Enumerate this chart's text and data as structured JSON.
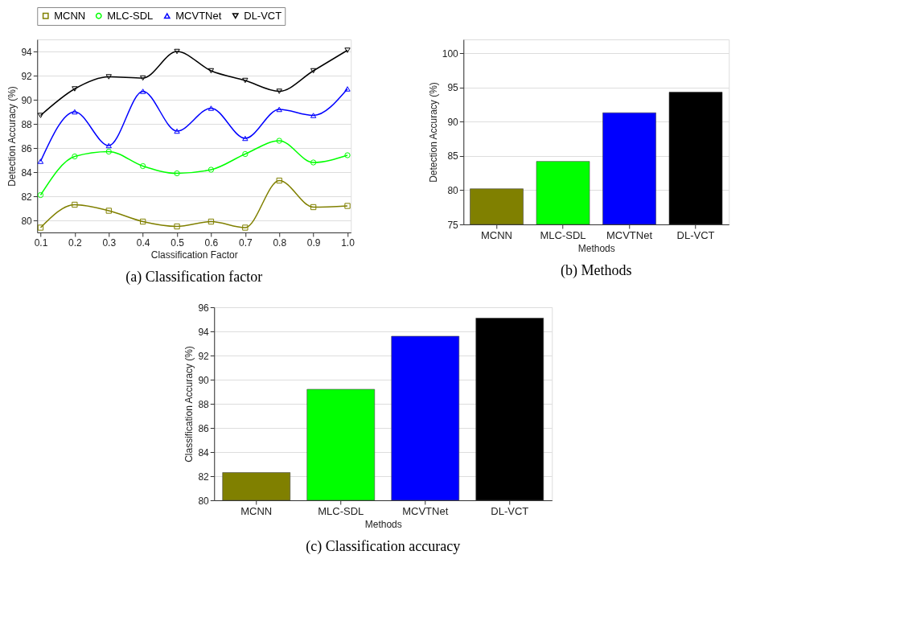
{
  "chart_data": [
    {
      "type": "line",
      "title": "(a) Classification factor",
      "xlabel": "Classification Factor",
      "ylabel": "Detection Accuracy (%)",
      "x": [
        0.1,
        0.2,
        0.3,
        0.4,
        0.5,
        0.6,
        0.7,
        0.8,
        0.9,
        1.0
      ],
      "xlim": [
        0.09,
        1.01
      ],
      "xticks": [
        {
          "value": 0.1,
          "label": "0.1"
        },
        {
          "value": 0.2,
          "label": "0.2"
        },
        {
          "value": 0.3,
          "label": "0.3"
        },
        {
          "value": 0.4,
          "label": "0.4"
        },
        {
          "value": 0.5,
          "label": "0.5"
        },
        {
          "value": 0.6,
          "label": "0.6"
        },
        {
          "value": 0.7,
          "label": "0.7"
        },
        {
          "value": 0.8,
          "label": "0.8"
        },
        {
          "value": 0.9,
          "label": "0.9"
        },
        {
          "value": 1.0,
          "label": "1.0"
        }
      ],
      "ylim": [
        79,
        95
      ],
      "yticks": [
        80,
        82,
        84,
        86,
        88,
        90,
        92,
        94
      ],
      "grid": "y",
      "legend": "top",
      "series": [
        {
          "name": "MCNN",
          "color": "#808000",
          "marker": "square",
          "values": [
            79.4,
            81.3,
            80.8,
            79.9,
            79.5,
            79.9,
            79.4,
            83.3,
            81.1,
            81.2
          ]
        },
        {
          "name": "MLC-SDL",
          "color": "#00ff00",
          "marker": "circle",
          "values": [
            82.1,
            85.3,
            85.7,
            84.5,
            83.9,
            84.2,
            85.5,
            86.6,
            84.8,
            85.4
          ]
        },
        {
          "name": "MCVTNet",
          "color": "#0000ff",
          "marker": "triangle",
          "values": [
            84.9,
            89.0,
            86.2,
            90.7,
            87.4,
            89.3,
            86.8,
            89.2,
            88.7,
            90.9
          ]
        },
        {
          "name": "DL-VCT",
          "color": "#000000",
          "marker": "triangle-down",
          "values": [
            88.7,
            90.9,
            91.9,
            91.8,
            94.0,
            92.4,
            91.6,
            90.7,
            92.4,
            94.1
          ]
        }
      ]
    },
    {
      "type": "bar",
      "title": "(b) Methods",
      "xlabel": "Methods",
      "ylabel": "Detection Accuracy (%)",
      "categories": [
        "MCNN",
        "MLC-SDL",
        "MCVTNet",
        "DL-VCT"
      ],
      "values": [
        80.2,
        84.2,
        91.3,
        94.3
      ],
      "colors": [
        "#808000",
        "#00ff00",
        "#0000ff",
        "#000000"
      ],
      "ylim": [
        75,
        102
      ],
      "yticks": [
        75,
        80,
        85,
        90,
        95,
        100
      ],
      "grid": "y"
    },
    {
      "type": "bar",
      "title": "(c) Classification accuracy",
      "xlabel": "Methods",
      "ylabel": "Classification Accuracy (%)",
      "categories": [
        "MCNN",
        "MLC-SDL",
        "MCVTNet",
        "DL-VCT"
      ],
      "values": [
        82.3,
        89.2,
        93.6,
        95.1
      ],
      "colors": [
        "#808000",
        "#00ff00",
        "#0000ff",
        "#000000"
      ],
      "ylim": [
        80,
        96
      ],
      "yticks": [
        80,
        82,
        84,
        86,
        88,
        90,
        92,
        94,
        96
      ],
      "grid": "y"
    }
  ]
}
